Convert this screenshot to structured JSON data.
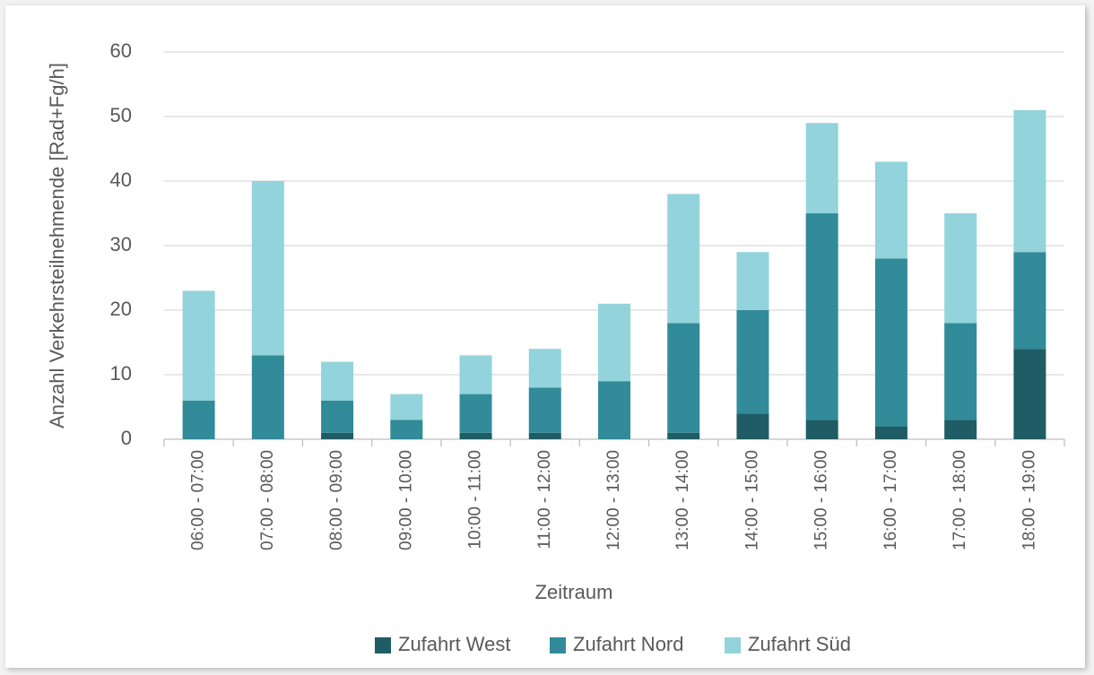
{
  "chart_data": {
    "type": "stacked_bar",
    "categories": [
      "06:00 - 07:00",
      "07:00 - 08:00",
      "08:00 - 09:00",
      "09:00 - 10:00",
      "10:00 - 11:00",
      "11:00 - 12:00",
      "12:00 - 13:00",
      "13:00 - 14:00",
      "14:00 - 15:00",
      "15:00 - 16:00",
      "16:00 - 17:00",
      "17:00 - 18:00",
      "18:00 - 19:00"
    ],
    "series": [
      {
        "name": "Zufahrt West",
        "color": "#1f5c66",
        "values": [
          0,
          0,
          1,
          0,
          1,
          1,
          0,
          1,
          4,
          3,
          2,
          3,
          14
        ]
      },
      {
        "name": "Zufahrt Nord",
        "color": "#318b99",
        "values": [
          6,
          13,
          5,
          3,
          6,
          7,
          9,
          17,
          16,
          32,
          26,
          15,
          15
        ]
      },
      {
        "name": "Zufahrt Süd",
        "color": "#93d3dc",
        "values": [
          17,
          27,
          6,
          4,
          6,
          6,
          12,
          20,
          9,
          14,
          15,
          17,
          22
        ]
      }
    ],
    "x_label": "Zeitraum",
    "y_label": "Anzahl Verkehrsteilnehmende [Rad+Fg/h]",
    "ylim": [
      0,
      60
    ],
    "yticks": [
      0,
      10,
      20,
      30,
      40,
      50,
      60
    ],
    "grid": true,
    "legend": "bottom"
  }
}
